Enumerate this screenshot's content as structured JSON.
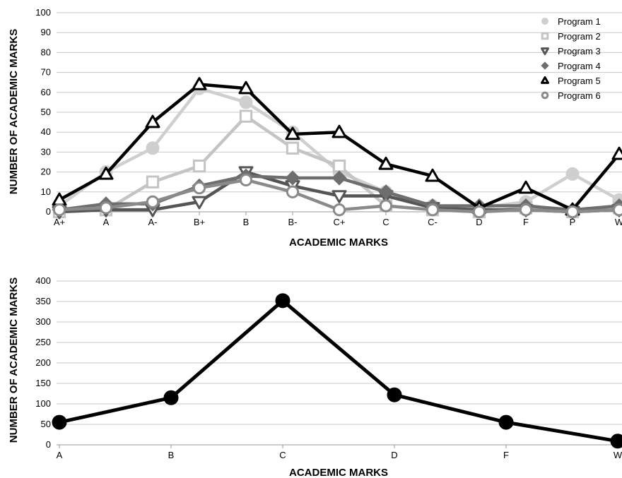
{
  "chart_data": [
    {
      "type": "line",
      "xlabel": "ACADEMIC MARKS",
      "ylabel": "NUMBER OF ACADEMIC MARKS",
      "ylim": [
        0,
        100
      ],
      "yticks": [
        0,
        10,
        20,
        30,
        40,
        50,
        60,
        70,
        80,
        90,
        100
      ],
      "categories": [
        "A+",
        "A",
        "A-",
        "B+",
        "B",
        "B-",
        "C+",
        "C",
        "C-",
        "D",
        "F",
        "P",
        "W"
      ],
      "grid": true,
      "legend": "top-right",
      "series": [
        {
          "name": "Program 1",
          "marker": "circle-filled",
          "color": "#cfcfcf",
          "values": [
            3,
            20,
            32,
            62,
            55,
            40,
            20,
            10,
            3,
            2,
            5,
            19,
            6
          ]
        },
        {
          "name": "Program 2",
          "marker": "square-open",
          "color": "#c4c4c4",
          "values": [
            0,
            1,
            15,
            23,
            48,
            32,
            23,
            3,
            1,
            0,
            2,
            0,
            2
          ]
        },
        {
          "name": "Program 3",
          "marker": "triangle-down-open",
          "color": "#555555",
          "values": [
            0,
            1,
            1,
            5,
            20,
            13,
            8,
            8,
            2,
            1,
            1,
            0,
            1
          ]
        },
        {
          "name": "Program 4",
          "marker": "diamond-filled",
          "color": "#6e6e6e",
          "values": [
            1,
            4,
            4,
            13,
            18,
            17,
            17,
            10,
            3,
            3,
            3,
            1,
            3
          ]
        },
        {
          "name": "Program 5",
          "marker": "triangle-up-open",
          "color": "#000000",
          "values": [
            6,
            19,
            45,
            64,
            62,
            39,
            40,
            24,
            18,
            2,
            12,
            1,
            29
          ]
        },
        {
          "name": "Program 6",
          "marker": "circle-open",
          "color": "#8a8a8a",
          "values": [
            1,
            2,
            5,
            12,
            16,
            10,
            1,
            3,
            1,
            0,
            1,
            0,
            1
          ]
        }
      ]
    },
    {
      "type": "line",
      "xlabel": "ACADEMIC MARKS",
      "ylabel": "NUMBER OF ACADEMIC MARKS",
      "ylim": [
        0,
        400
      ],
      "yticks": [
        0,
        50,
        100,
        150,
        200,
        250,
        300,
        350,
        400
      ],
      "categories": [
        "A",
        "B",
        "C",
        "D",
        "F",
        "W"
      ],
      "grid": true,
      "series": [
        {
          "marker": "circle-filled",
          "color": "#000000",
          "values": [
            55,
            115,
            352,
            122,
            55,
            9
          ]
        }
      ]
    }
  ]
}
